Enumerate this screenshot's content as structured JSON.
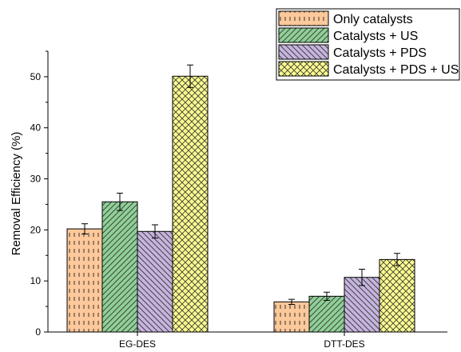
{
  "chart_data": {
    "type": "bar",
    "categories": [
      "EG-DES",
      "DTT-DES"
    ],
    "ylabel": "Removal Efficiency (%)",
    "xlabel": "",
    "ylim": [
      0,
      55
    ],
    "yticks": [
      0,
      10,
      20,
      30,
      40,
      50
    ],
    "grid": false,
    "legend_position": "top-right",
    "series": [
      {
        "name": "Only catalysts",
        "values": [
          20.2,
          5.9
        ],
        "errors": [
          1.0,
          0.5
        ],
        "color": "#fdc89a",
        "pattern": "vertical-dashes"
      },
      {
        "name": "Catalysts + US",
        "values": [
          25.5,
          7.0
        ],
        "errors": [
          1.7,
          0.8
        ],
        "color": "#8fd097",
        "pattern": "diagonal-lines"
      },
      {
        "name": "Catalysts + PDS",
        "values": [
          19.7,
          10.7
        ],
        "errors": [
          1.3,
          1.6
        ],
        "color": "#c5b4dd",
        "pattern": "diagonal-lines"
      },
      {
        "name": "Catalysts + PDS + US",
        "values": [
          50.1,
          14.2
        ],
        "errors": [
          2.2,
          1.2
        ],
        "color": "#fbfb8f",
        "pattern": "crosshatch"
      }
    ]
  }
}
